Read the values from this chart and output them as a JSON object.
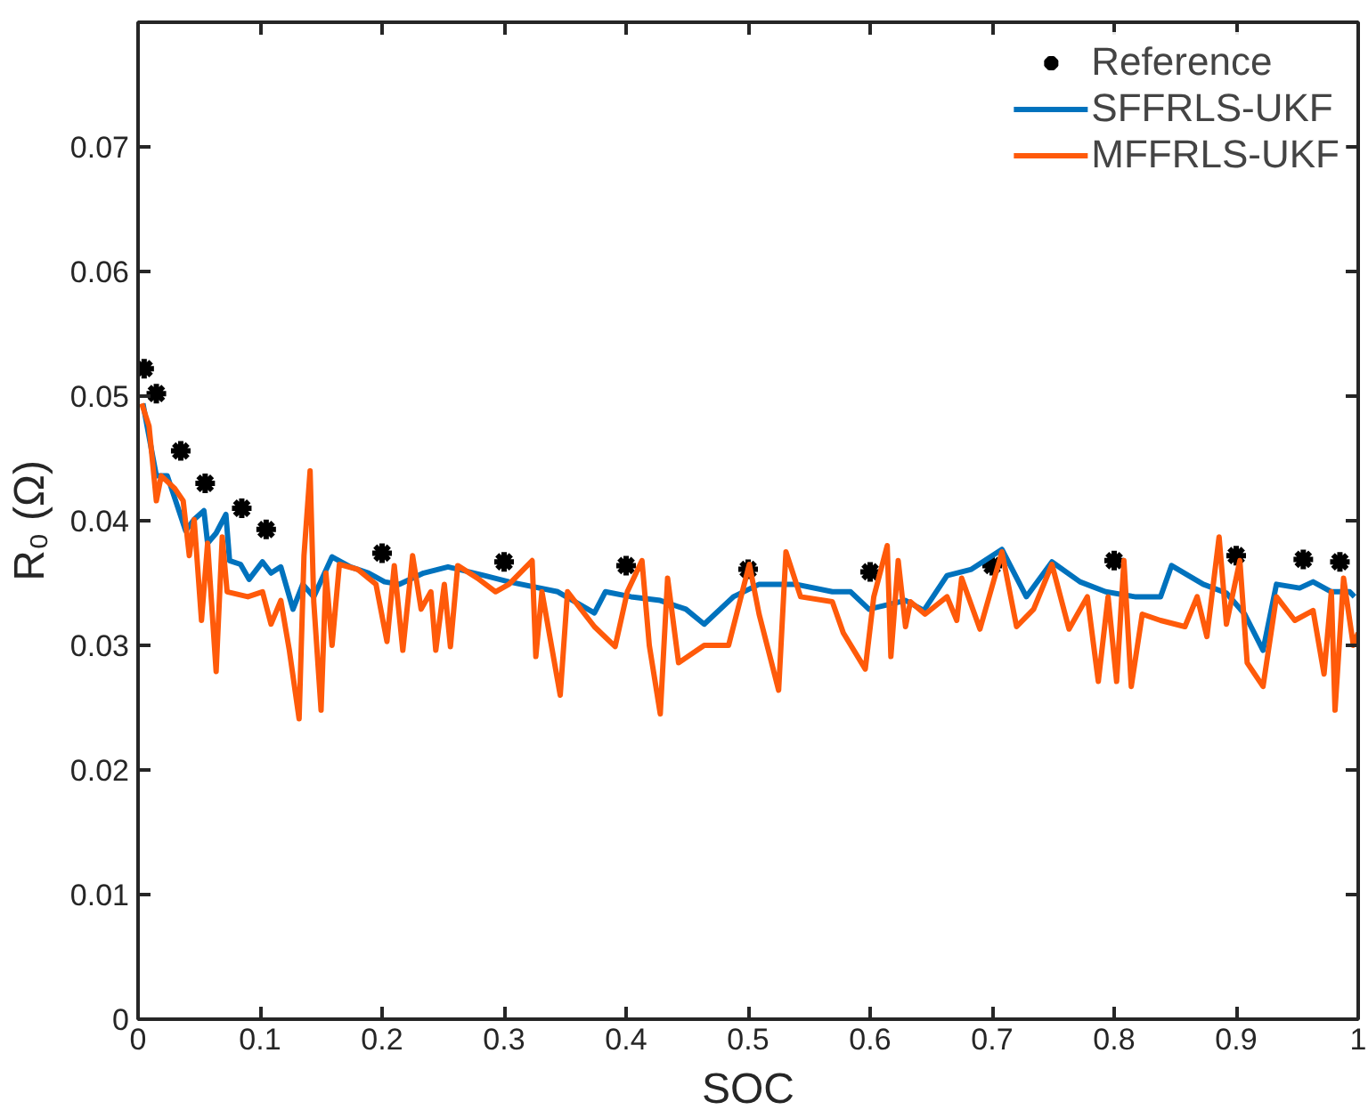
{
  "chart_data": {
    "type": "line",
    "xlabel": "SOC",
    "ylabel": "R₀ (Ω)",
    "xlim": [
      0,
      1
    ],
    "ylim": [
      0,
      0.08
    ],
    "xticks": [
      0,
      0.1,
      0.2,
      0.3,
      0.4,
      0.5,
      0.6,
      0.7,
      0.8,
      0.9,
      1
    ],
    "yticks": [
      0,
      0.01,
      0.02,
      0.03,
      0.04,
      0.05,
      0.06,
      0.07
    ],
    "grid": false,
    "legend": "top right",
    "series": [
      {
        "name": "Reference",
        "type": "scatter",
        "marker": "cross",
        "color": "#000000",
        "x": [
          0.005,
          0.015,
          0.035,
          0.055,
          0.085,
          0.105,
          0.2,
          0.3,
          0.4,
          0.5,
          0.6,
          0.7,
          0.8,
          0.9,
          0.955,
          0.985
        ],
        "values": [
          0.0522,
          0.0502,
          0.0456,
          0.043,
          0.041,
          0.0393,
          0.0374,
          0.0367,
          0.0364,
          0.0361,
          0.0359,
          0.0364,
          0.0368,
          0.0372,
          0.0369,
          0.0367
        ]
      },
      {
        "name": "SFFRLS-UKF",
        "line_style": "solid",
        "color": "#0072bd",
        "x": [
          0.004,
          0.015,
          0.024,
          0.039,
          0.046,
          0.054,
          0.057,
          0.064,
          0.072,
          0.075,
          0.084,
          0.091,
          0.102,
          0.109,
          0.117,
          0.127,
          0.135,
          0.144,
          0.159,
          0.174,
          0.189,
          0.202,
          0.214,
          0.234,
          0.254,
          0.284,
          0.304,
          0.344,
          0.374,
          0.383,
          0.404,
          0.428,
          0.449,
          0.464,
          0.488,
          0.509,
          0.539,
          0.569,
          0.584,
          0.599,
          0.629,
          0.644,
          0.663,
          0.683,
          0.708,
          0.728,
          0.749,
          0.772,
          0.793,
          0.817,
          0.838,
          0.847,
          0.873,
          0.892,
          0.907,
          0.922,
          0.933,
          0.952,
          0.963,
          0.978,
          0.993,
          0.997
        ],
        "values": [
          0.0494,
          0.0436,
          0.0436,
          0.0392,
          0.0401,
          0.0408,
          0.0382,
          0.039,
          0.0405,
          0.0368,
          0.0365,
          0.0353,
          0.0367,
          0.0358,
          0.0363,
          0.0329,
          0.0349,
          0.0339,
          0.0371,
          0.0363,
          0.0358,
          0.0351,
          0.0349,
          0.0358,
          0.0363,
          0.0356,
          0.0351,
          0.0343,
          0.0326,
          0.0343,
          0.0339,
          0.0336,
          0.0329,
          0.0317,
          0.0339,
          0.0349,
          0.0349,
          0.0343,
          0.0343,
          0.0329,
          0.0336,
          0.0328,
          0.0356,
          0.0361,
          0.0377,
          0.0339,
          0.0367,
          0.0351,
          0.0343,
          0.0339,
          0.0339,
          0.0364,
          0.0349,
          0.0342,
          0.0325,
          0.0296,
          0.0349,
          0.0346,
          0.0351,
          0.0343,
          0.0343,
          0.0339
        ]
      },
      {
        "name": "MFFRLS-UKF",
        "line_style": "solid",
        "color": "#ff5a0a",
        "x": [
          0.003,
          0.009,
          0.015,
          0.019,
          0.03,
          0.037,
          0.042,
          0.046,
          0.052,
          0.057,
          0.064,
          0.069,
          0.073,
          0.09,
          0.102,
          0.109,
          0.117,
          0.124,
          0.132,
          0.136,
          0.141,
          0.144,
          0.15,
          0.154,
          0.159,
          0.165,
          0.18,
          0.195,
          0.204,
          0.21,
          0.217,
          0.225,
          0.232,
          0.24,
          0.244,
          0.251,
          0.256,
          0.262,
          0.278,
          0.293,
          0.304,
          0.323,
          0.326,
          0.331,
          0.346,
          0.352,
          0.374,
          0.391,
          0.401,
          0.413,
          0.419,
          0.428,
          0.434,
          0.443,
          0.464,
          0.484,
          0.501,
          0.509,
          0.525,
          0.531,
          0.543,
          0.569,
          0.578,
          0.596,
          0.603,
          0.614,
          0.617,
          0.623,
          0.629,
          0.633,
          0.645,
          0.663,
          0.671,
          0.675,
          0.69,
          0.708,
          0.72,
          0.734,
          0.749,
          0.763,
          0.778,
          0.787,
          0.795,
          0.802,
          0.808,
          0.814,
          0.823,
          0.838,
          0.858,
          0.868,
          0.876,
          0.886,
          0.892,
          0.903,
          0.909,
          0.922,
          0.933,
          0.948,
          0.963,
          0.972,
          0.978,
          0.981,
          0.988,
          0.996,
          1.0
        ],
        "values": [
          0.0494,
          0.0476,
          0.0416,
          0.0436,
          0.0426,
          0.0416,
          0.0372,
          0.0401,
          0.032,
          0.0382,
          0.0279,
          0.0387,
          0.0343,
          0.0339,
          0.0343,
          0.0317,
          0.0336,
          0.0296,
          0.0241,
          0.0372,
          0.044,
          0.0335,
          0.0248,
          0.0358,
          0.03,
          0.0365,
          0.0361,
          0.0349,
          0.0303,
          0.0364,
          0.0296,
          0.0372,
          0.0329,
          0.0343,
          0.0296,
          0.0349,
          0.0299,
          0.0364,
          0.0354,
          0.0343,
          0.0349,
          0.0368,
          0.0291,
          0.0343,
          0.026,
          0.0343,
          0.0315,
          0.0299,
          0.0343,
          0.0368,
          0.03,
          0.0245,
          0.0354,
          0.0286,
          0.03,
          0.03,
          0.0365,
          0.0325,
          0.0264,
          0.0375,
          0.0339,
          0.0335,
          0.031,
          0.0281,
          0.0339,
          0.038,
          0.0291,
          0.0368,
          0.0315,
          0.0335,
          0.0325,
          0.0339,
          0.032,
          0.0354,
          0.0313,
          0.0375,
          0.0315,
          0.0329,
          0.0365,
          0.0313,
          0.0339,
          0.0271,
          0.0339,
          0.0271,
          0.0368,
          0.0267,
          0.0325,
          0.032,
          0.0315,
          0.0339,
          0.0307,
          0.0387,
          0.0317,
          0.0368,
          0.0286,
          0.0267,
          0.0339,
          0.032,
          0.0328,
          0.0277,
          0.0343,
          0.0248,
          0.0354,
          0.03,
          0.031
        ]
      }
    ]
  }
}
